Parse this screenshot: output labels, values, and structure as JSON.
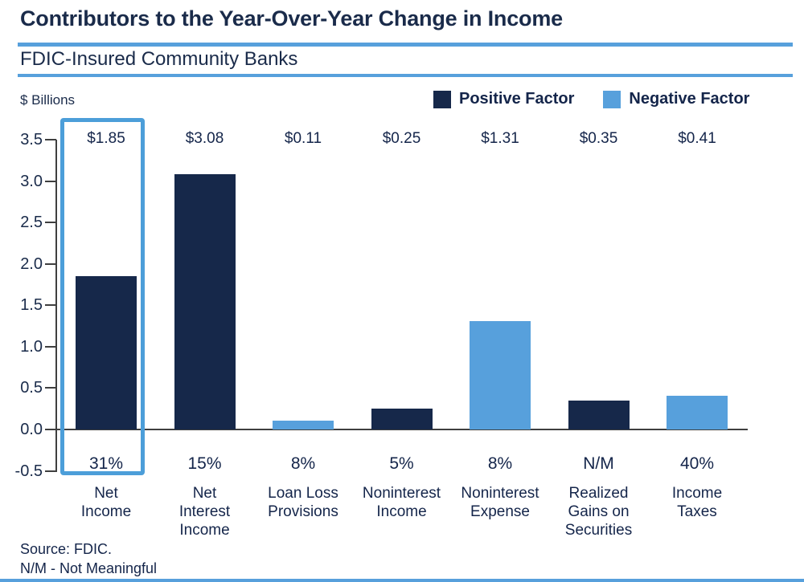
{
  "chart_data": {
    "type": "bar",
    "title": "Contributors to the Year-Over-Year Change in Income",
    "subtitle": "FDIC-Insured Community Banks",
    "ylabel": "$ Billions",
    "ylim": [
      -0.5,
      3.5
    ],
    "ytick_step": 0.5,
    "grid": false,
    "legend_position": "top-right",
    "yticks": [
      {
        "label": "3.5",
        "value": 3.5
      },
      {
        "label": "3.0",
        "value": 3.0
      },
      {
        "label": "2.5",
        "value": 2.5
      },
      {
        "label": "2.0",
        "value": 2.0
      },
      {
        "label": "1.5",
        "value": 1.5
      },
      {
        "label": "1.0",
        "value": 1.0
      },
      {
        "label": "0.5",
        "value": 0.5
      },
      {
        "label": "0.0",
        "value": 0.0
      },
      {
        "label": "-0.5",
        "value": -0.5
      }
    ],
    "legend": [
      {
        "label": "Positive Factor",
        "color": "#16284a"
      },
      {
        "label": "Negative Factor",
        "color": "#57a0dc"
      }
    ],
    "colors": {
      "positive": "#16284a",
      "negative": "#57a0dc",
      "highlight_box": "#4c9ed9"
    },
    "categories": [
      "Net Income",
      "Net Interest Income",
      "Loan Loss Provisions",
      "Noninterest Income",
      "Noninterest Expense",
      "Realized Gains on Securities",
      "Income Taxes"
    ],
    "bars": [
      {
        "category_lines": [
          "Net",
          "Income"
        ],
        "value": 1.85,
        "value_label": "$1.85",
        "pct_label": "31%",
        "factor": "positive",
        "highlighted": true
      },
      {
        "category_lines": [
          "Net",
          "Interest",
          "Income"
        ],
        "value": 3.08,
        "value_label": "$3.08",
        "pct_label": "15%",
        "factor": "positive",
        "highlighted": false
      },
      {
        "category_lines": [
          "Loan Loss",
          "Provisions"
        ],
        "value": 0.11,
        "value_label": "$0.11",
        "pct_label": "8%",
        "factor": "negative",
        "highlighted": false
      },
      {
        "category_lines": [
          "Noninterest",
          "Income"
        ],
        "value": 0.25,
        "value_label": "$0.25",
        "pct_label": "5%",
        "factor": "positive",
        "highlighted": false
      },
      {
        "category_lines": [
          "Noninterest",
          "Expense"
        ],
        "value": 1.31,
        "value_label": "$1.31",
        "pct_label": "8%",
        "factor": "negative",
        "highlighted": false
      },
      {
        "category_lines": [
          "Realized",
          "Gains on",
          "Securities"
        ],
        "value": 0.35,
        "value_label": "$0.35",
        "pct_label": "N/M",
        "factor": "positive",
        "highlighted": false
      },
      {
        "category_lines": [
          "Income",
          "Taxes"
        ],
        "value": 0.41,
        "value_label": "$0.41",
        "pct_label": "40%",
        "factor": "negative",
        "highlighted": false
      }
    ],
    "footnotes": [
      "Source: FDIC.",
      "N/M - Not Meaningful"
    ]
  }
}
